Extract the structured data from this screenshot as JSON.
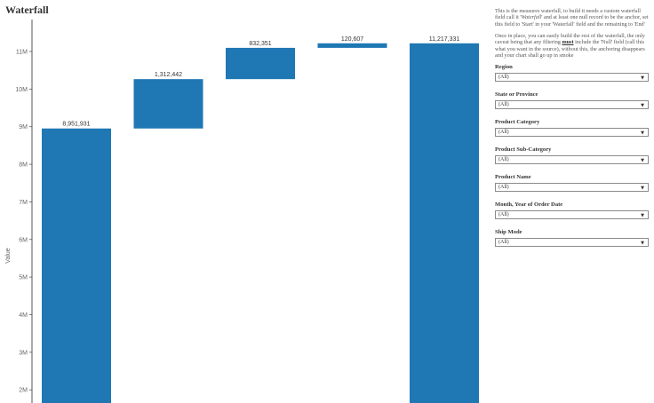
{
  "title": "Waterfall",
  "description": {
    "p1_a": "This is the measures waterfall, to build it needs a custom waterfall field call it '",
    "p1_em": "Waterfall",
    "p1_b": "' and at least one null record to be the anchor, set this field to 'Start' in your 'Waterfall' field and the remaining to 'End'",
    "p2_a": "Once in place, you can easily build the rest of the waterfall, the only caveat being that any filtering ",
    "p2_em": "must",
    "p2_b": " include the 'Null' field (call this what you want in the source), without this, the anchoring disappears and your chart shall go up in smoke"
  },
  "filters": [
    {
      "label": "Region",
      "value": "(All)"
    },
    {
      "label": "State or Province",
      "value": "(All)"
    },
    {
      "label": "Product Category",
      "value": "(All)"
    },
    {
      "label": "Product Sub-Category",
      "value": "(All)"
    },
    {
      "label": "Product Name",
      "value": "(All)"
    },
    {
      "label": "Month, Year of Order Date",
      "value": "(All)"
    },
    {
      "label": "Ship Mode",
      "value": "(All)"
    }
  ],
  "colors": {
    "bar": "#1f77b4",
    "axis": "#555555"
  },
  "chart_data": {
    "type": "bar",
    "subtype": "waterfall",
    "ylabel": "Value",
    "ylim": [
      1650000,
      11850000
    ],
    "y_ticks": [
      2000000,
      3000000,
      4000000,
      5000000,
      6000000,
      7000000,
      8000000,
      9000000,
      10000000,
      11000000
    ],
    "y_tick_labels": [
      "2M",
      "3M",
      "4M",
      "5M",
      "6M",
      "7M",
      "8M",
      "9M",
      "10M",
      "11M"
    ],
    "grid": false,
    "bars": [
      {
        "start": 0,
        "end": 8951931,
        "label": "8,951,931"
      },
      {
        "start": 8951931,
        "end": 10264373,
        "label": "1,312,442"
      },
      {
        "start": 10264373,
        "end": 11096724,
        "label": "832,351"
      },
      {
        "start": 11096724,
        "end": 11217331,
        "label": "120,607"
      },
      {
        "start": 0,
        "end": 11217331,
        "label": "11,217,331"
      }
    ]
  }
}
